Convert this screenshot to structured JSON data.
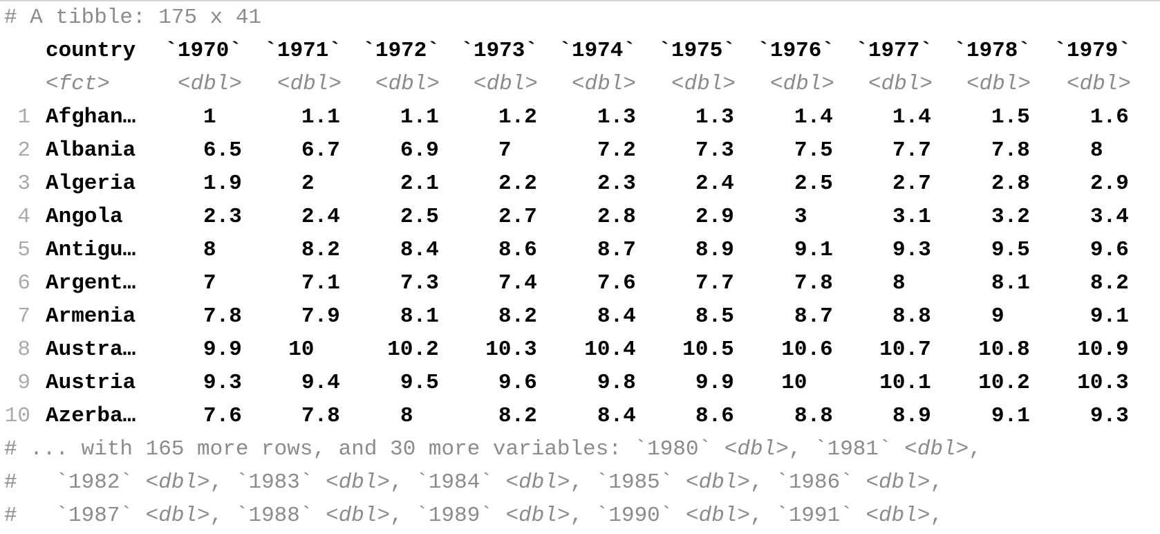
{
  "tibble_header": "# A tibble: 175 x 41",
  "column_names": [
    "country",
    "`1970`",
    "`1971`",
    "`1972`",
    "`1973`",
    "`1974`",
    "`1975`",
    "`1976`",
    "`1977`",
    "`1978`",
    "`1979`"
  ],
  "column_types": [
    "<fct>",
    "<dbl>",
    "<dbl>",
    "<dbl>",
    "<dbl>",
    "<dbl>",
    "<dbl>",
    "<dbl>",
    "<dbl>",
    "<dbl>",
    "<dbl>"
  ],
  "rows": [
    {
      "n": "1",
      "country": "Afghan…",
      "values": [
        "1",
        "1.1",
        "1.1",
        "1.2",
        "1.3",
        "1.3",
        "1.4",
        "1.4",
        "1.5",
        "1.6"
      ]
    },
    {
      "n": "2",
      "country": "Albania",
      "values": [
        "6.5",
        "6.7",
        "6.9",
        "7",
        "7.2",
        "7.3",
        "7.5",
        "7.7",
        "7.8",
        "8"
      ]
    },
    {
      "n": "3",
      "country": "Algeria",
      "values": [
        "1.9",
        "2",
        "2.1",
        "2.2",
        "2.3",
        "2.4",
        "2.5",
        "2.7",
        "2.8",
        "2.9"
      ]
    },
    {
      "n": "4",
      "country": "Angola",
      "values": [
        "2.3",
        "2.4",
        "2.5",
        "2.7",
        "2.8",
        "2.9",
        "3",
        "3.1",
        "3.2",
        "3.4"
      ]
    },
    {
      "n": "5",
      "country": "Antigu…",
      "values": [
        "8",
        "8.2",
        "8.4",
        "8.6",
        "8.7",
        "8.9",
        "9.1",
        "9.3",
        "9.5",
        "9.6"
      ]
    },
    {
      "n": "6",
      "country": "Argent…",
      "values": [
        "7",
        "7.1",
        "7.3",
        "7.4",
        "7.6",
        "7.7",
        "7.8",
        "8",
        "8.1",
        "8.2"
      ]
    },
    {
      "n": "7",
      "country": "Armenia",
      "values": [
        "7.8",
        "7.9",
        "8.1",
        "8.2",
        "8.4",
        "8.5",
        "8.7",
        "8.8",
        "9",
        "9.1"
      ]
    },
    {
      "n": "8",
      "country": "Austra…",
      "values": [
        "9.9",
        "10",
        "10.2",
        "10.3",
        "10.4",
        "10.5",
        "10.6",
        "10.7",
        "10.8",
        "10.9"
      ]
    },
    {
      "n": "9",
      "country": "Austria",
      "values": [
        "9.3",
        "9.4",
        "9.5",
        "9.6",
        "9.8",
        "9.9",
        "10",
        "10.1",
        "10.2",
        "10.3"
      ]
    },
    {
      "n": "10",
      "country": "Azerba…",
      "values": [
        "7.6",
        "7.8",
        "8",
        "8.2",
        "8.4",
        "8.6",
        "8.8",
        "8.9",
        "9.1",
        "9.3"
      ]
    }
  ],
  "footer": [
    [
      {
        "text": "# ... with 165 more rows, and 30 more variables: `1980` ",
        "style": "gray"
      },
      {
        "text": "<dbl>",
        "style": "type"
      },
      {
        "text": ", `1981` ",
        "style": "gray"
      },
      {
        "text": "<dbl>",
        "style": "type"
      },
      {
        "text": ",",
        "style": "gray"
      }
    ],
    [
      {
        "text": "#   `1982` ",
        "style": "gray"
      },
      {
        "text": "<dbl>",
        "style": "type"
      },
      {
        "text": ", `1983` ",
        "style": "gray"
      },
      {
        "text": "<dbl>",
        "style": "type"
      },
      {
        "text": ", `1984` ",
        "style": "gray"
      },
      {
        "text": "<dbl>",
        "style": "type"
      },
      {
        "text": ", `1985` ",
        "style": "gray"
      },
      {
        "text": "<dbl>",
        "style": "type"
      },
      {
        "text": ", `1986` ",
        "style": "gray"
      },
      {
        "text": "<dbl>",
        "style": "type"
      },
      {
        "text": ",",
        "style": "gray"
      }
    ],
    [
      {
        "text": "#   `1987` ",
        "style": "gray"
      },
      {
        "text": "<dbl>",
        "style": "type"
      },
      {
        "text": ", `1988` ",
        "style": "gray"
      },
      {
        "text": "<dbl>",
        "style": "type"
      },
      {
        "text": ", `1989` ",
        "style": "gray"
      },
      {
        "text": "<dbl>",
        "style": "type"
      },
      {
        "text": ", `1990` ",
        "style": "gray"
      },
      {
        "text": "<dbl>",
        "style": "type"
      },
      {
        "text": ", `1991` ",
        "style": "gray"
      },
      {
        "text": "<dbl>",
        "style": "type"
      },
      {
        "text": ",",
        "style": "gray"
      }
    ]
  ],
  "colors": {
    "text": "#000000",
    "muted": "#8b8b8b",
    "row_number": "#a9a9a9",
    "background": "#ffffff"
  }
}
